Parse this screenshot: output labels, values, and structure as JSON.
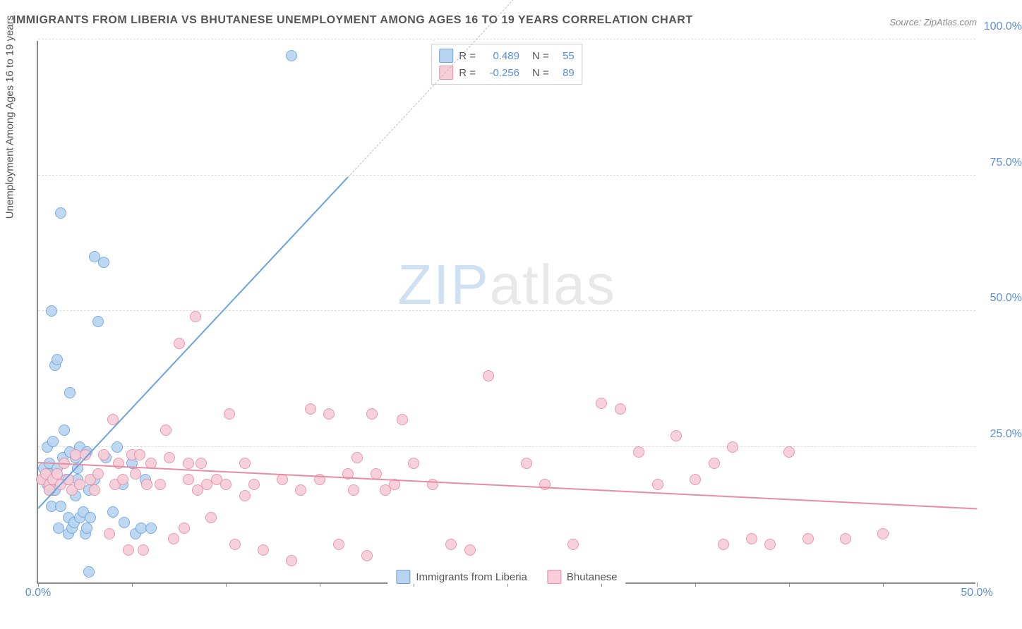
{
  "title": "IMMIGRANTS FROM LIBERIA VS BHUTANESE UNEMPLOYMENT AMONG AGES 16 TO 19 YEARS CORRELATION CHART",
  "source": "Source: ZipAtlas.com",
  "ylabel": "Unemployment Among Ages 16 to 19 years",
  "watermark_a": "ZIP",
  "watermark_b": "atlas",
  "chart": {
    "type": "scatter",
    "background_color": "#ffffff",
    "grid_color": "#dddddd",
    "axis_color": "#888888",
    "xlim": [
      0,
      50
    ],
    "ylim": [
      0,
      100
    ],
    "x_ticks_major": [
      0,
      50
    ],
    "x_ticks_minor": [
      5,
      10,
      15,
      20,
      25,
      30,
      35,
      40,
      45
    ],
    "y_ticks_major": [
      25,
      50,
      75,
      100
    ],
    "y_ticks_minor": [],
    "x_tick_labels": {
      "0": "0.0%",
      "50": "50.0%"
    },
    "y_tick_labels": {
      "25": "25.0%",
      "50": "50.0%",
      "75": "75.0%",
      "100": "100.0%"
    },
    "tick_label_color": "#5b8fd6",
    "tick_fontsize": 16,
    "marker_radius": 8,
    "marker_stroke_width": 1.5,
    "marker_fill_opacity": 0.25,
    "series": [
      {
        "key": "liberia",
        "label": "Immigrants from Liberia",
        "color_stroke": "#6aa3e0",
        "color_fill": "#b9d4f0",
        "R": "0.489",
        "N": "55",
        "trend": {
          "x0": 0,
          "y0": 14,
          "x1": 16.5,
          "y1": 75,
          "x1_dash": 27,
          "y1_dash": 114,
          "width": 2.2
        },
        "points": [
          [
            0.3,
            19
          ],
          [
            0.3,
            21
          ],
          [
            0.5,
            18
          ],
          [
            0.5,
            25
          ],
          [
            0.6,
            22
          ],
          [
            0.6,
            20
          ],
          [
            0.6,
            17
          ],
          [
            0.7,
            14
          ],
          [
            0.7,
            50
          ],
          [
            0.8,
            17
          ],
          [
            0.8,
            26
          ],
          [
            0.9,
            17
          ],
          [
            0.9,
            40
          ],
          [
            1,
            41
          ],
          [
            1,
            21
          ],
          [
            1.1,
            10
          ],
          [
            1.2,
            68
          ],
          [
            1.2,
            14
          ],
          [
            1.3,
            23
          ],
          [
            1.4,
            28
          ],
          [
            1.5,
            19
          ],
          [
            1.6,
            12
          ],
          [
            1.6,
            9
          ],
          [
            1.7,
            24
          ],
          [
            1.7,
            35
          ],
          [
            1.8,
            10
          ],
          [
            1.9,
            11
          ],
          [
            2,
            16
          ],
          [
            2,
            23
          ],
          [
            2.1,
            21
          ],
          [
            2.1,
            19
          ],
          [
            2.2,
            12
          ],
          [
            2.2,
            25
          ],
          [
            2.4,
            13
          ],
          [
            2.5,
            9
          ],
          [
            2.6,
            10
          ],
          [
            2.6,
            24
          ],
          [
            2.7,
            17
          ],
          [
            2.7,
            2
          ],
          [
            2.8,
            12
          ],
          [
            3,
            60
          ],
          [
            3,
            19
          ],
          [
            3.2,
            48
          ],
          [
            3.5,
            59
          ],
          [
            3.6,
            23
          ],
          [
            4,
            13
          ],
          [
            4.2,
            25
          ],
          [
            4.5,
            18
          ],
          [
            4.6,
            11
          ],
          [
            5,
            22
          ],
          [
            5.2,
            9
          ],
          [
            5.5,
            10
          ],
          [
            5.7,
            19
          ],
          [
            6,
            10
          ],
          [
            13.5,
            97
          ]
        ]
      },
      {
        "key": "bhutanese",
        "label": "Bhutanese",
        "color_stroke": "#e88ca4",
        "color_fill": "#f6cdd8",
        "R": "-0.256",
        "N": "89",
        "trend": {
          "x0": 0,
          "y0": 22.5,
          "x1": 50,
          "y1": 14,
          "width": 2.2
        },
        "points": [
          [
            0.2,
            19
          ],
          [
            0.4,
            20
          ],
          [
            0.6,
            18
          ],
          [
            0.6,
            17
          ],
          [
            0.8,
            19
          ],
          [
            1,
            20
          ],
          [
            1.2,
            18
          ],
          [
            1.4,
            22
          ],
          [
            1.6,
            19
          ],
          [
            1.8,
            17
          ],
          [
            2,
            23.5
          ],
          [
            2.2,
            18
          ],
          [
            2.5,
            23.5
          ],
          [
            2.8,
            19
          ],
          [
            3,
            17
          ],
          [
            3.2,
            20
          ],
          [
            3.5,
            23.5
          ],
          [
            3.8,
            9
          ],
          [
            4,
            30
          ],
          [
            4.1,
            18
          ],
          [
            4.3,
            22
          ],
          [
            4.5,
            19
          ],
          [
            4.8,
            6
          ],
          [
            5,
            23.5
          ],
          [
            5.2,
            20
          ],
          [
            5.4,
            23.5
          ],
          [
            5.6,
            6
          ],
          [
            5.8,
            18
          ],
          [
            6,
            22
          ],
          [
            6.5,
            18
          ],
          [
            6.8,
            28
          ],
          [
            7,
            23
          ],
          [
            7.2,
            8
          ],
          [
            7.5,
            44
          ],
          [
            7.8,
            10
          ],
          [
            8,
            19
          ],
          [
            8,
            22
          ],
          [
            8.4,
            49
          ],
          [
            8.5,
            17
          ],
          [
            8.7,
            22
          ],
          [
            9,
            18
          ],
          [
            9.2,
            12
          ],
          [
            9.5,
            19
          ],
          [
            10,
            18
          ],
          [
            10.2,
            31
          ],
          [
            10.5,
            7
          ],
          [
            11,
            16
          ],
          [
            11,
            22
          ],
          [
            11.5,
            18
          ],
          [
            12,
            6
          ],
          [
            13,
            19
          ],
          [
            13.5,
            4
          ],
          [
            14,
            17
          ],
          [
            14.5,
            32
          ],
          [
            15,
            19
          ],
          [
            15.5,
            31
          ],
          [
            16,
            7
          ],
          [
            16.5,
            20
          ],
          [
            16.8,
            17
          ],
          [
            17,
            23
          ],
          [
            17.5,
            5
          ],
          [
            17.8,
            31
          ],
          [
            18,
            20
          ],
          [
            18.5,
            17
          ],
          [
            19,
            18
          ],
          [
            19.4,
            30
          ],
          [
            20,
            22
          ],
          [
            21,
            18
          ],
          [
            22,
            7
          ],
          [
            23,
            6
          ],
          [
            24,
            38
          ],
          [
            26,
            22
          ],
          [
            27,
            18
          ],
          [
            28.5,
            7
          ],
          [
            30,
            33
          ],
          [
            31,
            32
          ],
          [
            32,
            24
          ],
          [
            33,
            18
          ],
          [
            34,
            27
          ],
          [
            35,
            19
          ],
          [
            36,
            22
          ],
          [
            36.5,
            7
          ],
          [
            37,
            25
          ],
          [
            38,
            8
          ],
          [
            39,
            7
          ],
          [
            40,
            24
          ],
          [
            41,
            8
          ],
          [
            43,
            8
          ],
          [
            45,
            9
          ]
        ]
      }
    ]
  },
  "legend_bottom": {
    "items": [
      {
        "key": "liberia",
        "label": "Immigrants from Liberia"
      },
      {
        "key": "bhutanese",
        "label": "Bhutanese"
      }
    ]
  }
}
